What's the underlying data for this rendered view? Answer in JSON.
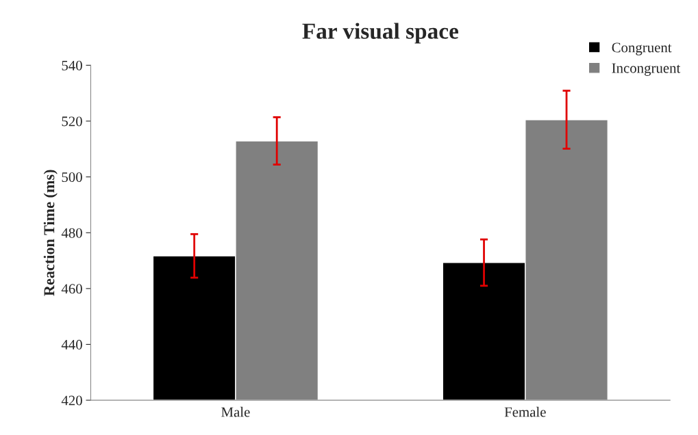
{
  "chart_data": {
    "type": "bar",
    "title": "Far visual space",
    "ylabel": "Reaction Time (ms)",
    "categories": [
      "Male",
      "Female"
    ],
    "series": [
      {
        "name": "Congruent",
        "color": "#000000",
        "values": [
          471.7,
          469.3
        ],
        "errors": [
          7.8,
          8.3
        ]
      },
      {
        "name": "Incongruent",
        "color": "#808080",
        "values": [
          512.9,
          520.5
        ],
        "errors": [
          8.5,
          10.4
        ]
      }
    ],
    "ylim": [
      420,
      540
    ],
    "yticks": [
      420,
      440,
      460,
      480,
      500,
      520,
      540
    ],
    "grid": false,
    "legend": "top right"
  }
}
